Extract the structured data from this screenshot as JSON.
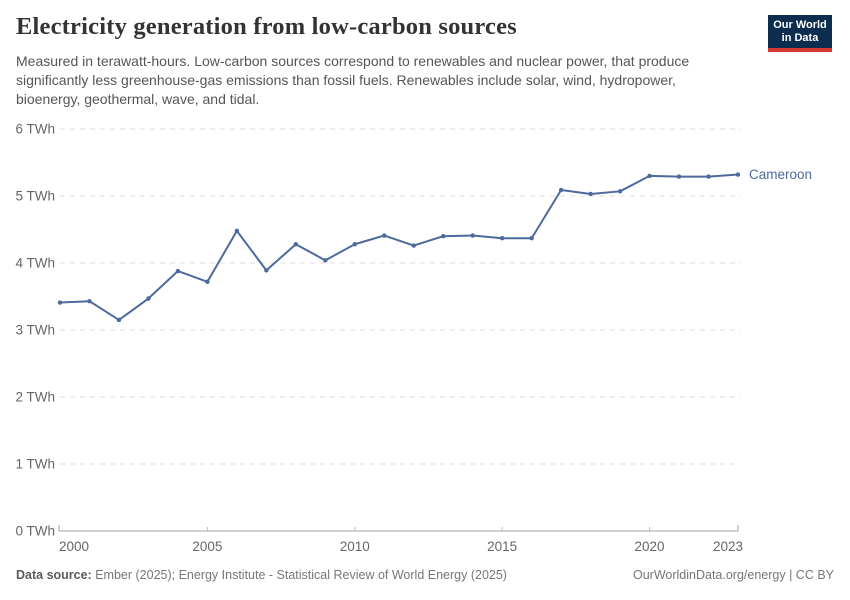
{
  "header": {
    "title": "Electricity generation from low-carbon sources",
    "subtitle": "Measured in terawatt-hours. Low-carbon sources correspond to renewables and nuclear power, that produce significantly less greenhouse-gas emissions than fossil fuels. Renewables include solar, wind, hydropower, bioenergy, geothermal, wave, and tidal.",
    "logo": {
      "line1": "Our World",
      "line2": "in Data",
      "bg_color": "#0d2d4e",
      "accent_color": "#d63b33"
    }
  },
  "chart_data": {
    "type": "line",
    "title": "Electricity generation from low-carbon sources",
    "unit": "TWh",
    "xlabel": "",
    "ylabel": "",
    "xlim": [
      2000,
      2023
    ],
    "ylim": [
      0,
      6
    ],
    "grid": "horizontal-dashed",
    "x": [
      2000,
      2001,
      2002,
      2003,
      2004,
      2005,
      2006,
      2007,
      2008,
      2009,
      2010,
      2011,
      2012,
      2013,
      2014,
      2015,
      2016,
      2017,
      2018,
      2019,
      2020,
      2021,
      2022,
      2023
    ],
    "series": [
      {
        "name": "Cameroon",
        "color": "#4c6a9c",
        "values": [
          3.41,
          3.43,
          3.15,
          3.47,
          3.88,
          3.72,
          4.48,
          3.89,
          4.28,
          4.04,
          4.28,
          4.41,
          4.26,
          4.4,
          4.41,
          4.37,
          4.37,
          5.09,
          5.03,
          5.07,
          5.3,
          5.29,
          5.29,
          5.32
        ]
      }
    ],
    "yticks": [
      {
        "v": 0,
        "label": "0 TWh"
      },
      {
        "v": 1,
        "label": "1 TWh"
      },
      {
        "v": 2,
        "label": "2 TWh"
      },
      {
        "v": 3,
        "label": "3 TWh"
      },
      {
        "v": 4,
        "label": "4 TWh"
      },
      {
        "v": 5,
        "label": "5 TWh"
      },
      {
        "v": 6,
        "label": "6 TWh"
      }
    ],
    "xticks": [
      {
        "v": 2000,
        "label": "2000"
      },
      {
        "v": 2005,
        "label": "2005"
      },
      {
        "v": 2010,
        "label": "2010"
      },
      {
        "v": 2015,
        "label": "2015"
      },
      {
        "v": 2020,
        "label": "2020"
      },
      {
        "v": 2023,
        "label": "2023"
      }
    ],
    "entity_label": "Cameroon",
    "colors": {
      "line": "#4c6a9c",
      "gridline": "#dddddd",
      "axis": "#a0a0a0",
      "tick_text": "#666666"
    },
    "legend_position": "end-of-line-label"
  },
  "footer": {
    "source_label": "Data source:",
    "source_text": " Ember (2025); Energy Institute - Statistical Review of World Energy (2025)",
    "attribution": "OurWorldinData.org/energy | CC BY"
  }
}
